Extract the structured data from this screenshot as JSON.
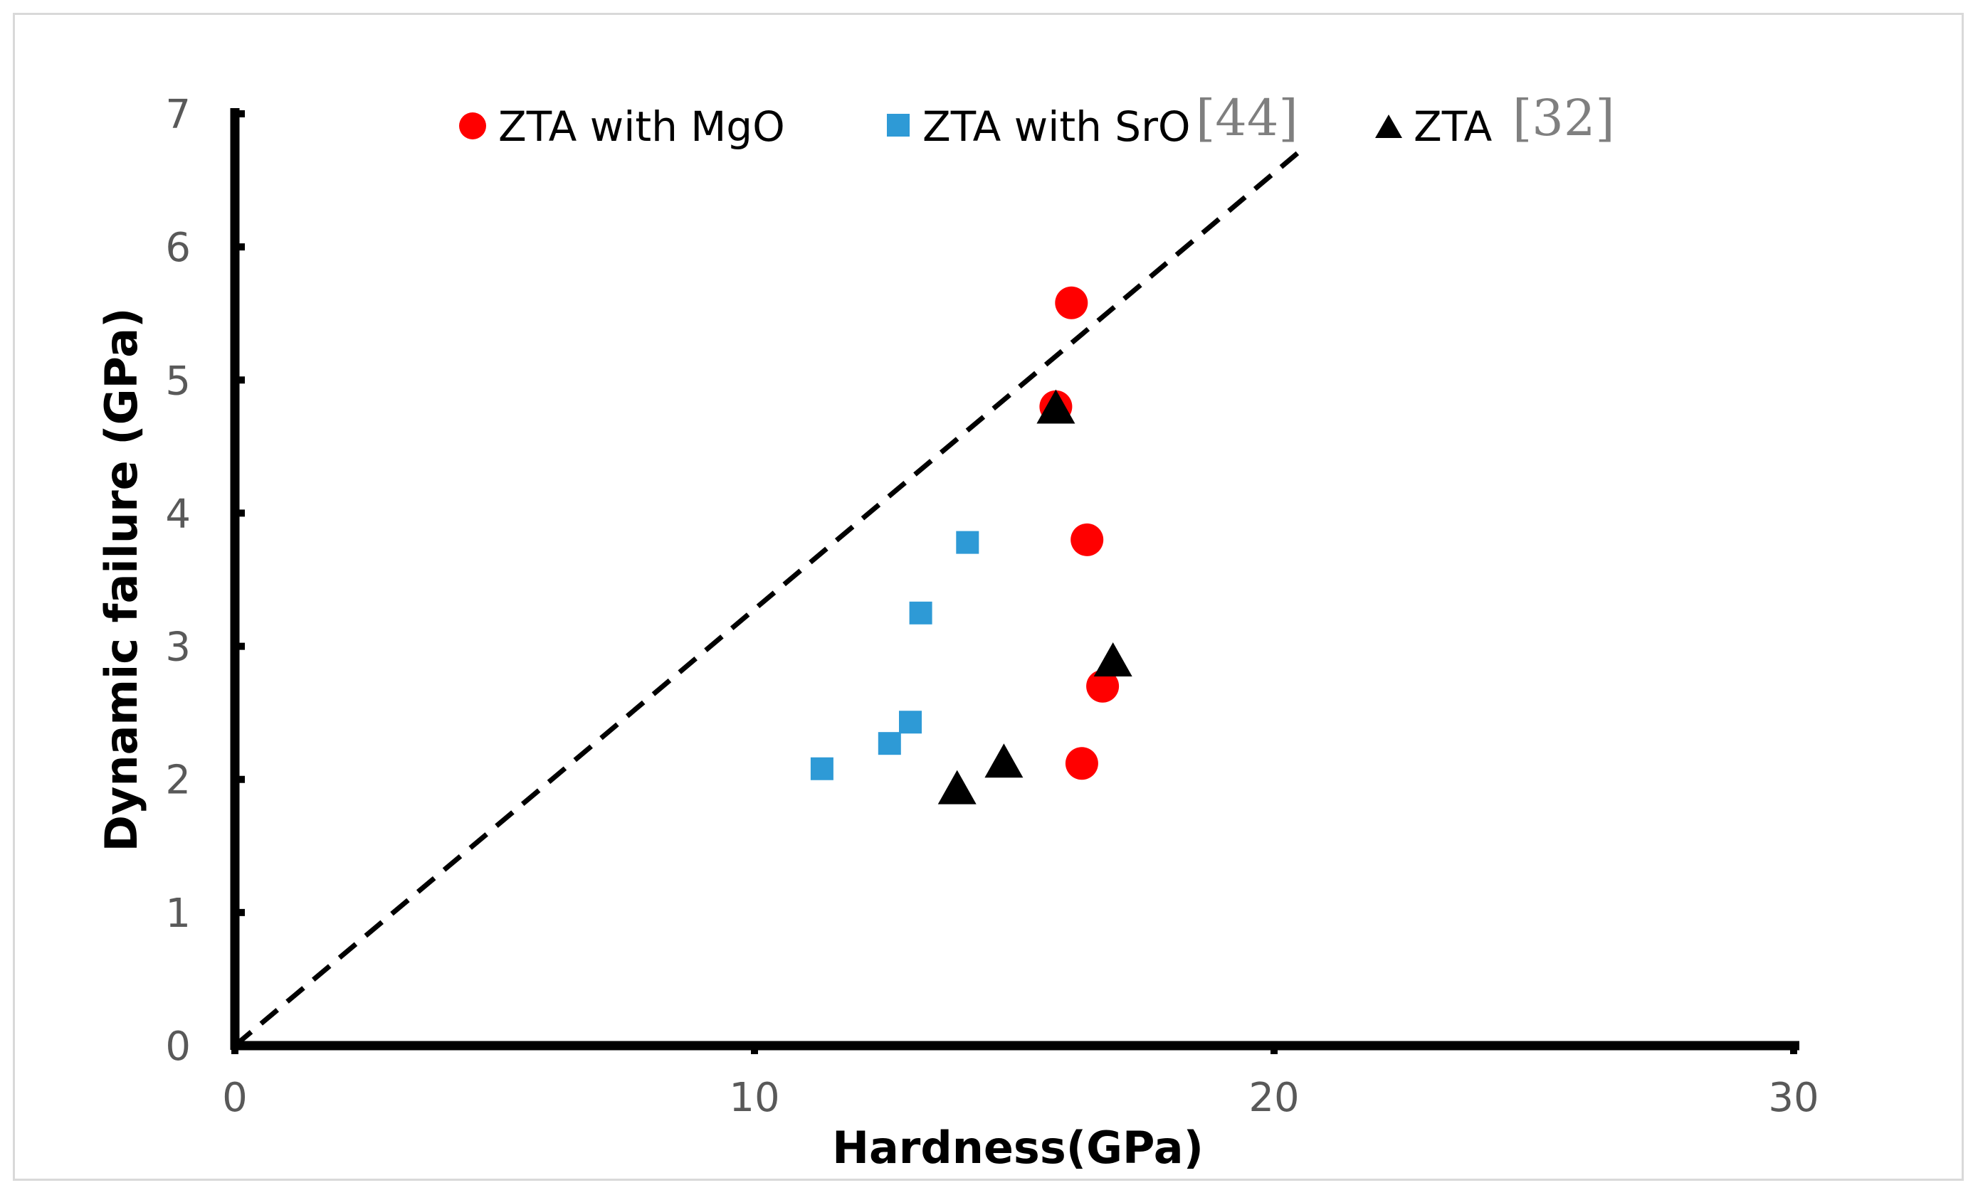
{
  "chart_data": {
    "type": "scatter",
    "title": "",
    "xlabel": "Hardness(GPa)",
    "ylabel": "Dynamic failure (GPa)",
    "xlim": [
      0,
      30
    ],
    "ylim": [
      0,
      7
    ],
    "xticks": [
      0,
      10,
      20,
      30
    ],
    "yticks": [
      0,
      1,
      2,
      3,
      4,
      5,
      6,
      7
    ],
    "grid": false,
    "legend_position": "top",
    "series": [
      {
        "name": "ZTA with MgO",
        "ref": "",
        "marker": "circle",
        "color": "#ff0000",
        "points": [
          [
            16.1,
            5.58
          ],
          [
            15.8,
            4.8
          ],
          [
            16.4,
            3.8
          ],
          [
            16.7,
            2.7
          ],
          [
            16.3,
            2.12
          ]
        ]
      },
      {
        "name": "ZTA with SrO",
        "ref": "[44]",
        "marker": "square",
        "color": "#2e9ad6",
        "points": [
          [
            14.1,
            3.78
          ],
          [
            13.2,
            3.25
          ],
          [
            13.0,
            2.43
          ],
          [
            12.6,
            2.27
          ],
          [
            11.3,
            2.08
          ]
        ]
      },
      {
        "name": "ZTA",
        "ref": "[32]",
        "marker": "triangle",
        "color": "#000000",
        "points": [
          [
            15.8,
            4.78
          ],
          [
            16.9,
            2.88
          ],
          [
            14.8,
            2.12
          ],
          [
            13.9,
            1.92
          ]
        ]
      }
    ],
    "reference_line": {
      "style": "dashed",
      "color": "#000000",
      "from": [
        0,
        0
      ],
      "to": [
        20.5,
        6.72
      ]
    }
  }
}
